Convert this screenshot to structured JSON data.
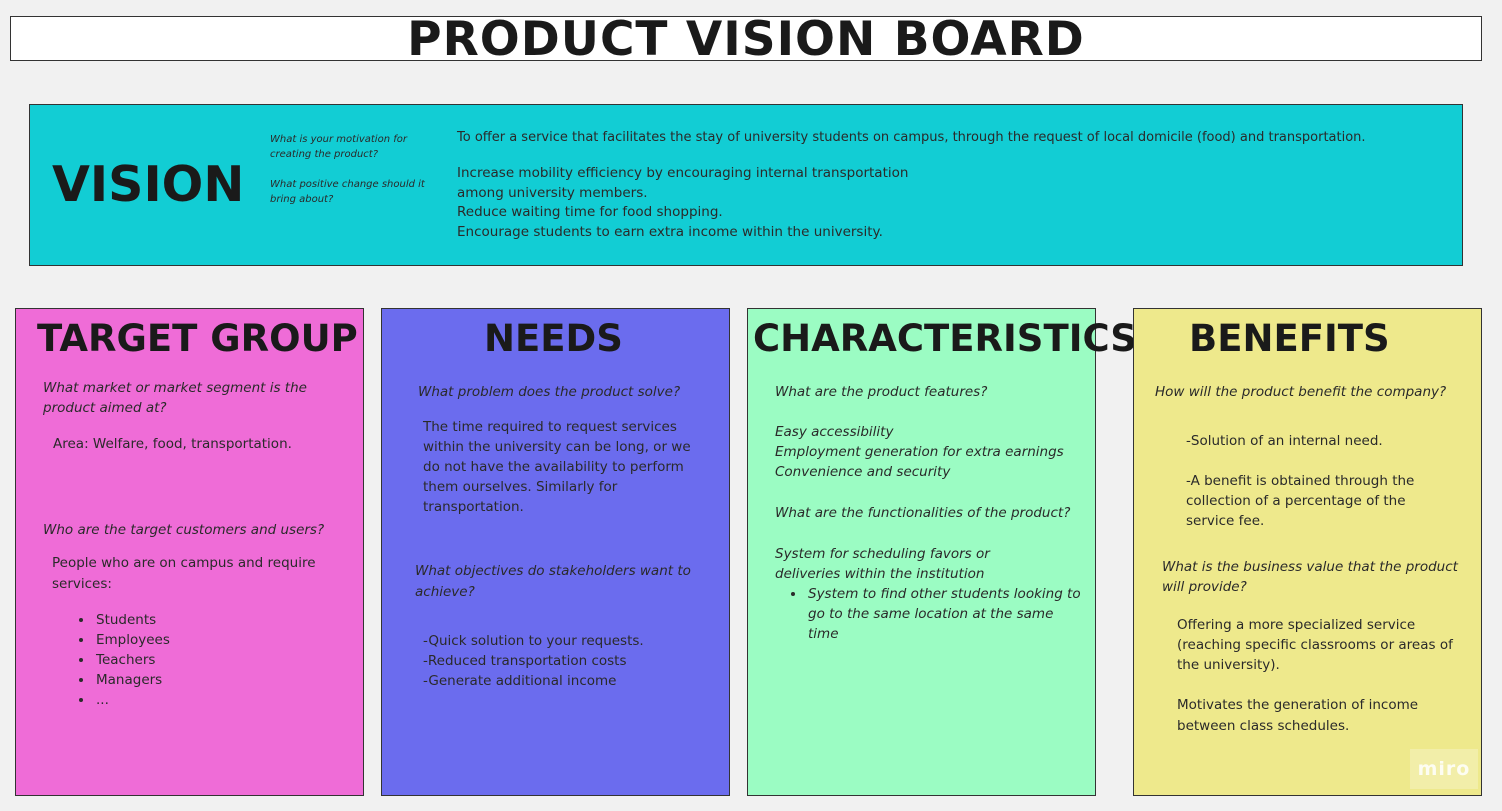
{
  "board": {
    "title": "PRODUCT VISION BOARD",
    "watermark": "miro"
  },
  "vision": {
    "heading": "VISION",
    "question_1": "What is your motivation for creating the product?",
    "question_2": "What positive change should it bring about?",
    "statement": "To offer a service that facilitates the stay of university students on campus, through the request of local domicile (food) and transportation.",
    "goals": [
      "Increase mobility efficiency by encouraging internal transportation",
      "among university members.",
      "Reduce waiting time for food shopping.",
      "Encourage students to earn extra income within the university."
    ]
  },
  "target_group": {
    "heading": "TARGET GROUP",
    "question_1": "What market or market segment is the product aimed at?",
    "answer_1": "Area: Welfare, food, transportation.",
    "question_2": "Who are the target customers and users?",
    "answer_2": "People who are on campus and require services:",
    "users": [
      "Students",
      "Employees",
      "Teachers",
      "Managers",
      "..."
    ]
  },
  "needs": {
    "heading": "NEEDS",
    "question_1": "What problem does the product solve?",
    "answer_1": "The time required to request services within the university can be long, or we do not have the availability to perform them ourselves. Similarly for transportation.",
    "question_2": "What objectives do stakeholders want to achieve?",
    "objectives": [
      "-Quick solution to your requests.",
      "-Reduced transportation costs",
      "-Generate additional income"
    ]
  },
  "characteristics": {
    "heading": "CHARACTERISTICS",
    "question_1": "What are the product features?",
    "features": [
      "Easy accessibility",
      "Employment generation for extra earnings",
      "Convenience and security"
    ],
    "question_2": "What are the functionalities of the product?",
    "functionality": "System for scheduling favors or deliveries within the institution",
    "sub_functionality": "System to find other students looking to go to the same location at the same time"
  },
  "benefits": {
    "heading": "BENEFITS",
    "question_1": "How will the product benefit the company?",
    "benefit_1": "-Solution of an internal need.",
    "benefit_2": "-A benefit is obtained through the collection of a percentage of the service fee.",
    "question_2": "What is the business value that the product will provide?",
    "value_1": "Offering a more specialized service (reaching specific classrooms or areas of the university).",
    "value_2": "Motivates the generation of income between class schedules."
  },
  "colors": {
    "vision": "#12cdd4",
    "target_group": "#ef6cd7",
    "needs": "#6b6cee",
    "characteristics": "#9bfcc3",
    "benefits": "#eee98c",
    "canvas": "#f1f1f1"
  }
}
